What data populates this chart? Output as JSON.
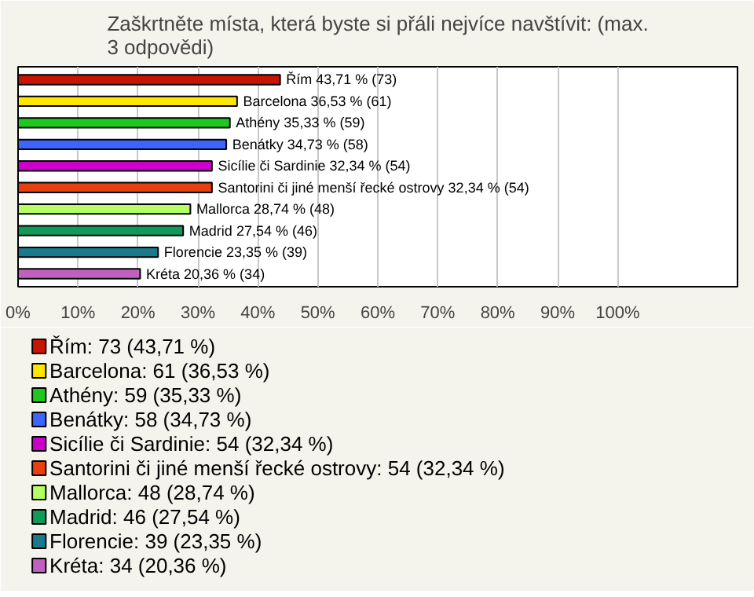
{
  "chart_data": {
    "type": "bar",
    "orientation": "horizontal",
    "stacked": true,
    "title": "Zaškrtněte místa, která byste si přáli nejvíce navštívit: (max. 3 odpovědi)",
    "categories": [
      "Řím",
      "Barcelona",
      "Athény",
      "Benátky",
      "Sicílie či Sardinie",
      "Santorini či jiné menší řecké ostrovy",
      "Mallorca",
      "Madrid",
      "Florencie",
      "Kréta"
    ],
    "series": [
      {
        "name": "Řím: 73 (43,71 %)",
        "color": "#c81400",
        "values": [
          43.71,
          null,
          null,
          null,
          null,
          null,
          null,
          null,
          null,
          null
        ]
      },
      {
        "name": "Barcelona: 61 (36,53 %)",
        "color": "#ffe600",
        "values": [
          null,
          36.53,
          null,
          null,
          null,
          null,
          null,
          null,
          null,
          null
        ]
      },
      {
        "name": "Athény: 59 (35,33 %)",
        "color": "#1ec81e",
        "values": [
          null,
          null,
          35.33,
          null,
          null,
          null,
          null,
          null,
          null,
          null
        ]
      },
      {
        "name": "Benátky: 58 (34,73 %)",
        "color": "#3c64ff",
        "values": [
          null,
          null,
          null,
          34.73,
          null,
          null,
          null,
          null,
          null,
          null
        ]
      },
      {
        "name": "Sicílie či Sardinie: 54 (32,34 %)",
        "color": "#cc00cc",
        "values": [
          null,
          null,
          null,
          null,
          32.34,
          null,
          null,
          null,
          null,
          null
        ]
      },
      {
        "name": "Santorini či jiné menší řecké ostrovy: 54 (32,34 %)",
        "color": "#e64010",
        "values": [
          null,
          null,
          null,
          null,
          null,
          32.34,
          null,
          null,
          null,
          null
        ]
      },
      {
        "name": "Mallorca: 48 (28,74 %)",
        "color": "#b4ff64",
        "values": [
          null,
          null,
          null,
          null,
          null,
          null,
          28.74,
          null,
          null,
          null
        ]
      },
      {
        "name": "Madrid: 46 (27,54 %)",
        "color": "#12995a",
        "values": [
          null,
          null,
          null,
          null,
          null,
          null,
          null,
          27.54,
          null,
          null
        ]
      },
      {
        "name": "Florencie: 39 (23,35 %)",
        "color": "#1a7a8c",
        "values": [
          null,
          null,
          null,
          null,
          null,
          null,
          null,
          null,
          23.35,
          null
        ]
      },
      {
        "name": "Kréta: 34 (20,36 %)",
        "color": "#c060c0",
        "values": [
          null,
          null,
          null,
          null,
          null,
          null,
          null,
          null,
          null,
          20.36
        ]
      }
    ],
    "value_labels": [
      "43,71 % (73)",
      "36,53 % (61)",
      "35,33 % (59)",
      "34,73 % (58)",
      "32,34 % (54)",
      "32,34 % (54)",
      "28,74 % (48)",
      "27,54 % (46)",
      "23,35 % (39)",
      "20,36 % (34)"
    ],
    "xlim": [
      0,
      120
    ],
    "xticks": [
      {
        "value": 0,
        "label": "0%"
      },
      {
        "value": 10,
        "label": "10%"
      },
      {
        "value": 20,
        "label": "20%"
      },
      {
        "value": 30,
        "label": "30%"
      },
      {
        "value": 40,
        "label": "40%"
      },
      {
        "value": 50,
        "label": "50%"
      },
      {
        "value": 60,
        "label": "60%"
      },
      {
        "value": 70,
        "label": "70%"
      },
      {
        "value": 80,
        "label": "80%"
      },
      {
        "value": 90,
        "label": "90%"
      },
      {
        "value": 100,
        "label": "100%"
      }
    ],
    "grid": "x",
    "legend": "bottom",
    "tick_labels": "x"
  }
}
